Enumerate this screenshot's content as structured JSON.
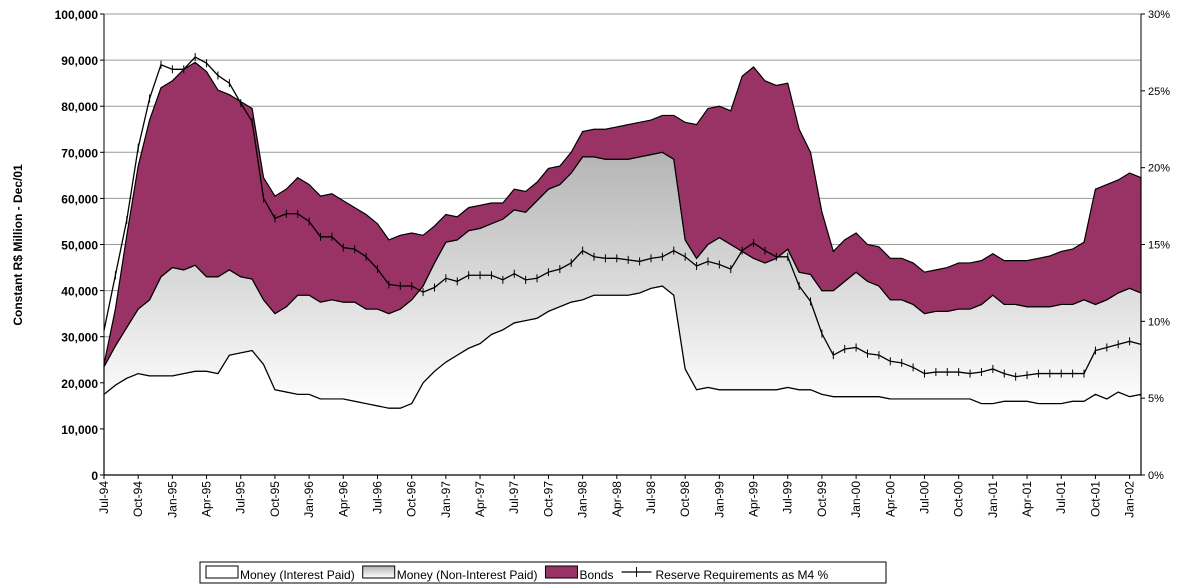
{
  "chart_data": {
    "type": "stacked-area",
    "y_label": "Constant R$ Million - Dec/01",
    "categories": [
      "Jul-94",
      null,
      null,
      "Oct-94",
      null,
      null,
      "Jan-95",
      null,
      null,
      "Apr-95",
      null,
      null,
      "Jul-95",
      null,
      null,
      "Oct-95",
      null,
      null,
      "Jan-96",
      null,
      null,
      "Apr-96",
      null,
      null,
      "Jul-96",
      null,
      null,
      "Oct-96",
      null,
      null,
      "Jan-97",
      null,
      null,
      "Apr-97",
      null,
      null,
      "Jul-97",
      null,
      null,
      "Oct-97",
      null,
      null,
      "Jan-98",
      null,
      null,
      "Apr-98",
      null,
      null,
      "Jul-98",
      null,
      null,
      "Oct-98",
      null,
      null,
      "Jan-99",
      null,
      null,
      "Apr-99",
      null,
      null,
      "Jul-99",
      null,
      null,
      "Oct-99",
      null,
      null,
      "Jan-00",
      null,
      null,
      "Apr-00",
      null,
      null,
      "Jul-00",
      null,
      null,
      "Oct-00",
      null,
      null,
      "Jan-01",
      null,
      null,
      "Apr-01",
      null,
      null,
      "Jul-01",
      null,
      null,
      "Oct-01",
      null,
      null,
      "Jan-02",
      null
    ],
    "series": [
      {
        "name": "Money (Interest Paid)",
        "color": "#ffffff",
        "values": [
          17500,
          19500,
          21000,
          22000,
          21500,
          21500,
          21500,
          22000,
          22500,
          22500,
          22000,
          26000,
          26500,
          27000,
          24000,
          18500,
          18000,
          17500,
          17500,
          16500,
          16500,
          16500,
          16000,
          15500,
          15000,
          14500,
          14500,
          15500,
          20000,
          22500,
          24500,
          26000,
          27500,
          28500,
          30500,
          31500,
          33000,
          33500,
          34000,
          35500,
          36500,
          37500,
          38000,
          39000,
          39000,
          39000,
          39000,
          39500,
          40500,
          41000,
          39000,
          23000,
          18500,
          19000,
          18500,
          18500,
          18500,
          18500,
          18500,
          18500,
          19000,
          18500,
          18500,
          17500,
          17000,
          17000,
          17000,
          17000,
          17000,
          16500,
          16500,
          16500,
          16500,
          16500,
          16500,
          16500,
          16500,
          15500,
          15500,
          16000,
          16000,
          16000,
          15500,
          15500,
          15500,
          16000,
          16000,
          17500,
          16500,
          18000,
          17000,
          17500
        ]
      },
      {
        "name": "Money (Non-Interest Paid)",
        "color": "#b4b4b4",
        "values": [
          6000,
          8500,
          11000,
          14000,
          16500,
          21500,
          23500,
          22500,
          23000,
          20500,
          21000,
          18500,
          16500,
          15500,
          14000,
          16500,
          18500,
          21500,
          21500,
          21000,
          21500,
          21000,
          21500,
          20500,
          21000,
          20500,
          21500,
          22500,
          21000,
          23500,
          26000,
          25000,
          25500,
          25000,
          24000,
          24000,
          24500,
          23500,
          25500,
          26500,
          26500,
          28000,
          31000,
          30000,
          29500,
          29500,
          29500,
          29500,
          29000,
          29000,
          29500,
          28000,
          28500,
          31000,
          33000,
          31500,
          30000,
          28500,
          27500,
          28500,
          30000,
          25500,
          25000,
          22500,
          23000,
          25000,
          27000,
          25000,
          24000,
          21500,
          21500,
          20500,
          18500,
          19000,
          19000,
          19500,
          19500,
          21500,
          23500,
          21000,
          21000,
          20500,
          21000,
          21000,
          21500,
          21000,
          22000,
          19500,
          21500,
          21500,
          23500,
          22000
        ]
      },
      {
        "name": "Bonds",
        "color": "#993366",
        "values": [
          500,
          8000,
          20000,
          31000,
          39000,
          41000,
          40500,
          43500,
          44000,
          44500,
          40500,
          38000,
          38000,
          37000,
          26500,
          25500,
          25500,
          25500,
          24000,
          23000,
          23000,
          22000,
          20500,
          20500,
          18500,
          16000,
          16000,
          14500,
          11000,
          8000,
          6000,
          5000,
          5000,
          5000,
          4500,
          3500,
          4500,
          4500,
          4000,
          4500,
          4000,
          4500,
          5500,
          6000,
          6500,
          7000,
          7500,
          7500,
          7500,
          8000,
          9500,
          25500,
          29000,
          29500,
          28500,
          29000,
          38000,
          41500,
          39500,
          37500,
          36000,
          31000,
          26500,
          17000,
          8500,
          9000,
          8500,
          8000,
          8500,
          9000,
          9000,
          9000,
          9000,
          9000,
          9500,
          10000,
          10000,
          9500,
          9000,
          9500,
          9500,
          10000,
          10500,
          11000,
          11500,
          12000,
          12500,
          25000,
          25000,
          24500,
          25000,
          25000
        ]
      },
      {
        "name": "Reserve Requirements as M4 %",
        "color": "#000000",
        "axis": "y2",
        "values": [
          9.4,
          13,
          16.6,
          21.3,
          24.5,
          26.7,
          26.4,
          26.4,
          27.2,
          26.8,
          26,
          25.5,
          24.2,
          23,
          18,
          16.7,
          17,
          17,
          16.5,
          15.5,
          15.5,
          14.8,
          14.7,
          14.2,
          13.4,
          12.4,
          12.3,
          12.3,
          11.9,
          12.2,
          12.8,
          12.6,
          13,
          13,
          13,
          12.7,
          13.1,
          12.7,
          12.8,
          13.2,
          13.4,
          13.8,
          14.6,
          14.2,
          14.1,
          14.1,
          14,
          13.9,
          14.1,
          14.2,
          14.6,
          14.2,
          13.6,
          13.9,
          13.7,
          13.4,
          14.6,
          15.1,
          14.6,
          14.2,
          14.2,
          12.3,
          11.3,
          9.2,
          7.8,
          8.2,
          8.3,
          7.9,
          7.8,
          7.4,
          7.3,
          7,
          6.6,
          6.7,
          6.7,
          6.7,
          6.6,
          6.7,
          6.9,
          6.6,
          6.4,
          6.5,
          6.6,
          6.6,
          6.6,
          6.6,
          6.6,
          8.1,
          8.3,
          8.5,
          8.7,
          8.5
        ]
      }
    ],
    "ylim": [
      0,
      100000
    ],
    "yticks": [
      0,
      {
        "value": 10000,
        "label": "10,000"
      },
      {
        "value": 20000,
        "label": "20,000"
      },
      {
        "value": 30000,
        "label": "30,000"
      },
      {
        "value": 40000,
        "label": "40,000"
      },
      {
        "value": 50000,
        "label": "50,000"
      },
      {
        "value": 60000,
        "label": "60,000"
      },
      {
        "value": 70000,
        "label": "70,000"
      },
      {
        "value": 80000,
        "label": "80,000"
      },
      {
        "value": 90000,
        "label": "90,000"
      },
      {
        "value": 100000,
        "label": "100,000"
      }
    ],
    "y2lim": [
      0,
      30
    ],
    "y2ticks": [
      {
        "value": 0,
        "label": "0%"
      },
      {
        "value": 5,
        "label": "5%"
      },
      {
        "value": 10,
        "label": "10%"
      },
      {
        "value": 15,
        "label": "15%"
      },
      {
        "value": 20,
        "label": "20%"
      },
      {
        "value": 25,
        "label": "25%"
      },
      {
        "value": 30,
        "label": "30%"
      }
    ],
    "grid": true,
    "legend": "bottom"
  }
}
